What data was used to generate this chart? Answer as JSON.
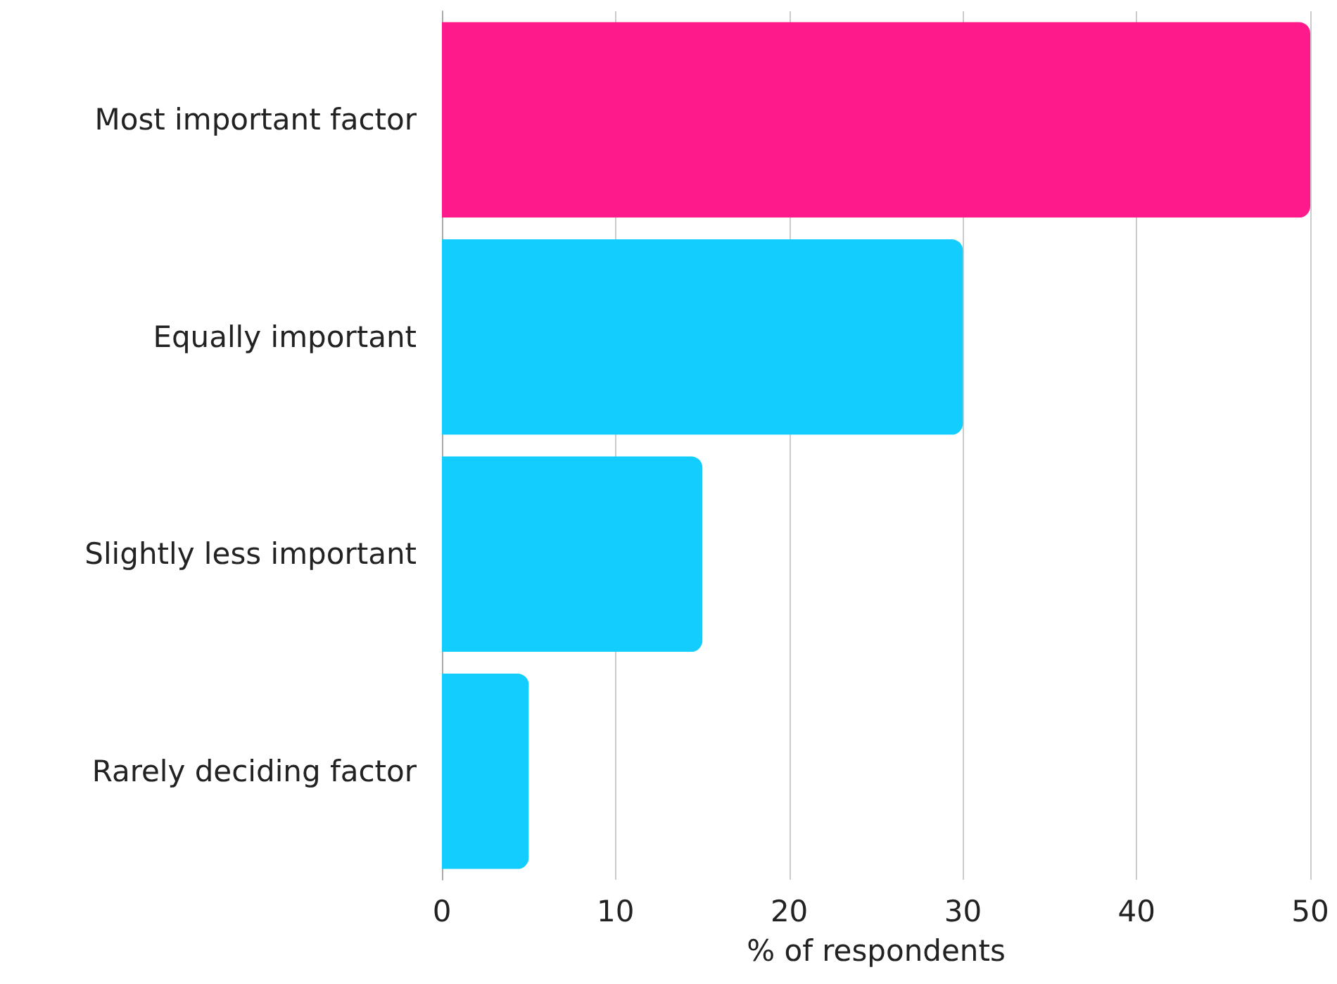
{
  "chart_data": {
    "type": "bar",
    "orientation": "horizontal",
    "xlabel": "% of respondents",
    "categories": [
      "Most important factor",
      "Equally important",
      "Slightly less important",
      "Rarely deciding factor"
    ],
    "values": [
      50,
      30,
      15,
      5
    ],
    "colors": [
      "#ff1a8c",
      "#12cdfd",
      "#12cdfd",
      "#12cdfd"
    ],
    "xlim": [
      0,
      50
    ],
    "xticks": [
      0,
      10,
      20,
      30,
      40,
      50
    ],
    "grid": "x"
  }
}
